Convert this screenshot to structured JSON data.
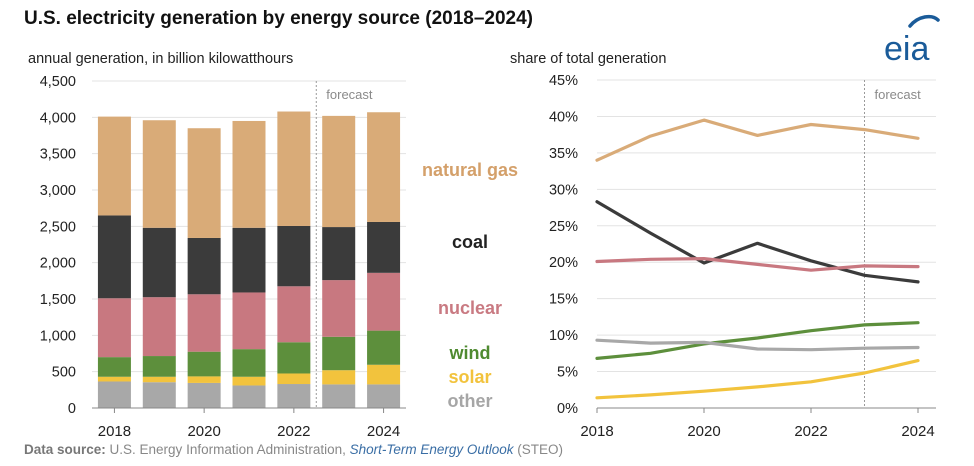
{
  "header": {
    "title": "U.S. electricity generation by energy source (2018–2024)",
    "logo_text": "eia"
  },
  "footer": {
    "label": "Data source:",
    "text": " U.S. Energy Information Administration, ",
    "italic": "Short-Term Energy Outlook",
    "suffix": " (STEO)"
  },
  "colors": {
    "natural_gas": "#d9ab78",
    "coal": "#3b3b3b",
    "nuclear": "#c87880",
    "wind": "#5d8f3c",
    "solar": "#f2c33d",
    "other": "#a8a8a8",
    "legend_natural_gas": "#d4a06a",
    "legend_coal": "#222222",
    "legend_nuclear": "#c97a82",
    "legend_wind": "#4f8a30",
    "legend_solar": "#f2c33d",
    "legend_other": "#a6a6a6",
    "logo": "#1a5b99"
  },
  "legend": {
    "natural_gas": "natural gas",
    "coal": "coal",
    "nuclear": "nuclear",
    "wind": "wind",
    "solar": "solar",
    "other": "other"
  },
  "chart_data": [
    {
      "type": "bar",
      "stacked": true,
      "subtitle": "annual generation, in billion kilowatthours",
      "categories": [
        "2018",
        "2019",
        "2020",
        "2021",
        "2022",
        "2023",
        "2024"
      ],
      "x_tick_labels": [
        "2018",
        "2020",
        "2022",
        "2024"
      ],
      "ylim": [
        0,
        4500
      ],
      "y_ticks": [
        "0",
        "500",
        "1,000",
        "1,500",
        "2,000",
        "2,500",
        "3,000",
        "3,500",
        "4,000",
        "4,500"
      ],
      "forecast_label": "forecast",
      "forecast_start": "2023",
      "series": [
        {
          "key": "other",
          "name": "other",
          "values": [
            365,
            355,
            345,
            310,
            330,
            325,
            325
          ]
        },
        {
          "key": "solar",
          "name": "solar",
          "values": [
            65,
            75,
            90,
            120,
            145,
            195,
            270
          ]
        },
        {
          "key": "wind",
          "name": "wind",
          "values": [
            270,
            285,
            340,
            380,
            430,
            460,
            470
          ]
        },
        {
          "key": "nuclear",
          "name": "nuclear",
          "values": [
            810,
            810,
            790,
            780,
            770,
            780,
            795
          ]
        },
        {
          "key": "coal",
          "name": "coal",
          "values": [
            1140,
            955,
            775,
            890,
            830,
            730,
            700
          ]
        },
        {
          "key": "natural_gas",
          "name": "natural gas",
          "values": [
            1360,
            1480,
            1510,
            1470,
            1575,
            1530,
            1510
          ]
        }
      ]
    },
    {
      "type": "line",
      "subtitle": "share of total generation",
      "x": [
        2018,
        2019,
        2020,
        2021,
        2022,
        2023,
        2024
      ],
      "x_tick_labels": [
        "2018",
        "2020",
        "2022",
        "2024"
      ],
      "ylim": [
        0,
        45
      ],
      "y_ticks": [
        "0%",
        "5%",
        "10%",
        "15%",
        "20%",
        "25%",
        "30%",
        "35%",
        "40%",
        "45%"
      ],
      "forecast_label": "forecast",
      "forecast_start": 2023,
      "series": [
        {
          "key": "natural_gas",
          "name": "natural gas",
          "values": [
            34.0,
            37.3,
            39.5,
            37.4,
            38.9,
            38.2,
            37.0
          ]
        },
        {
          "key": "coal",
          "name": "coal",
          "values": [
            28.3,
            24.0,
            19.9,
            22.6,
            20.2,
            18.2,
            17.3
          ]
        },
        {
          "key": "nuclear",
          "name": "nuclear",
          "values": [
            20.1,
            20.4,
            20.5,
            19.7,
            18.9,
            19.5,
            19.4
          ]
        },
        {
          "key": "wind",
          "name": "wind",
          "values": [
            6.8,
            7.5,
            8.8,
            9.6,
            10.6,
            11.4,
            11.7
          ]
        },
        {
          "key": "solar",
          "name": "solar",
          "values": [
            1.4,
            1.8,
            2.3,
            2.9,
            3.6,
            4.8,
            6.5
          ]
        },
        {
          "key": "other",
          "name": "other",
          "values": [
            9.3,
            8.9,
            9.0,
            8.1,
            8.0,
            8.2,
            8.3
          ]
        }
      ]
    }
  ]
}
